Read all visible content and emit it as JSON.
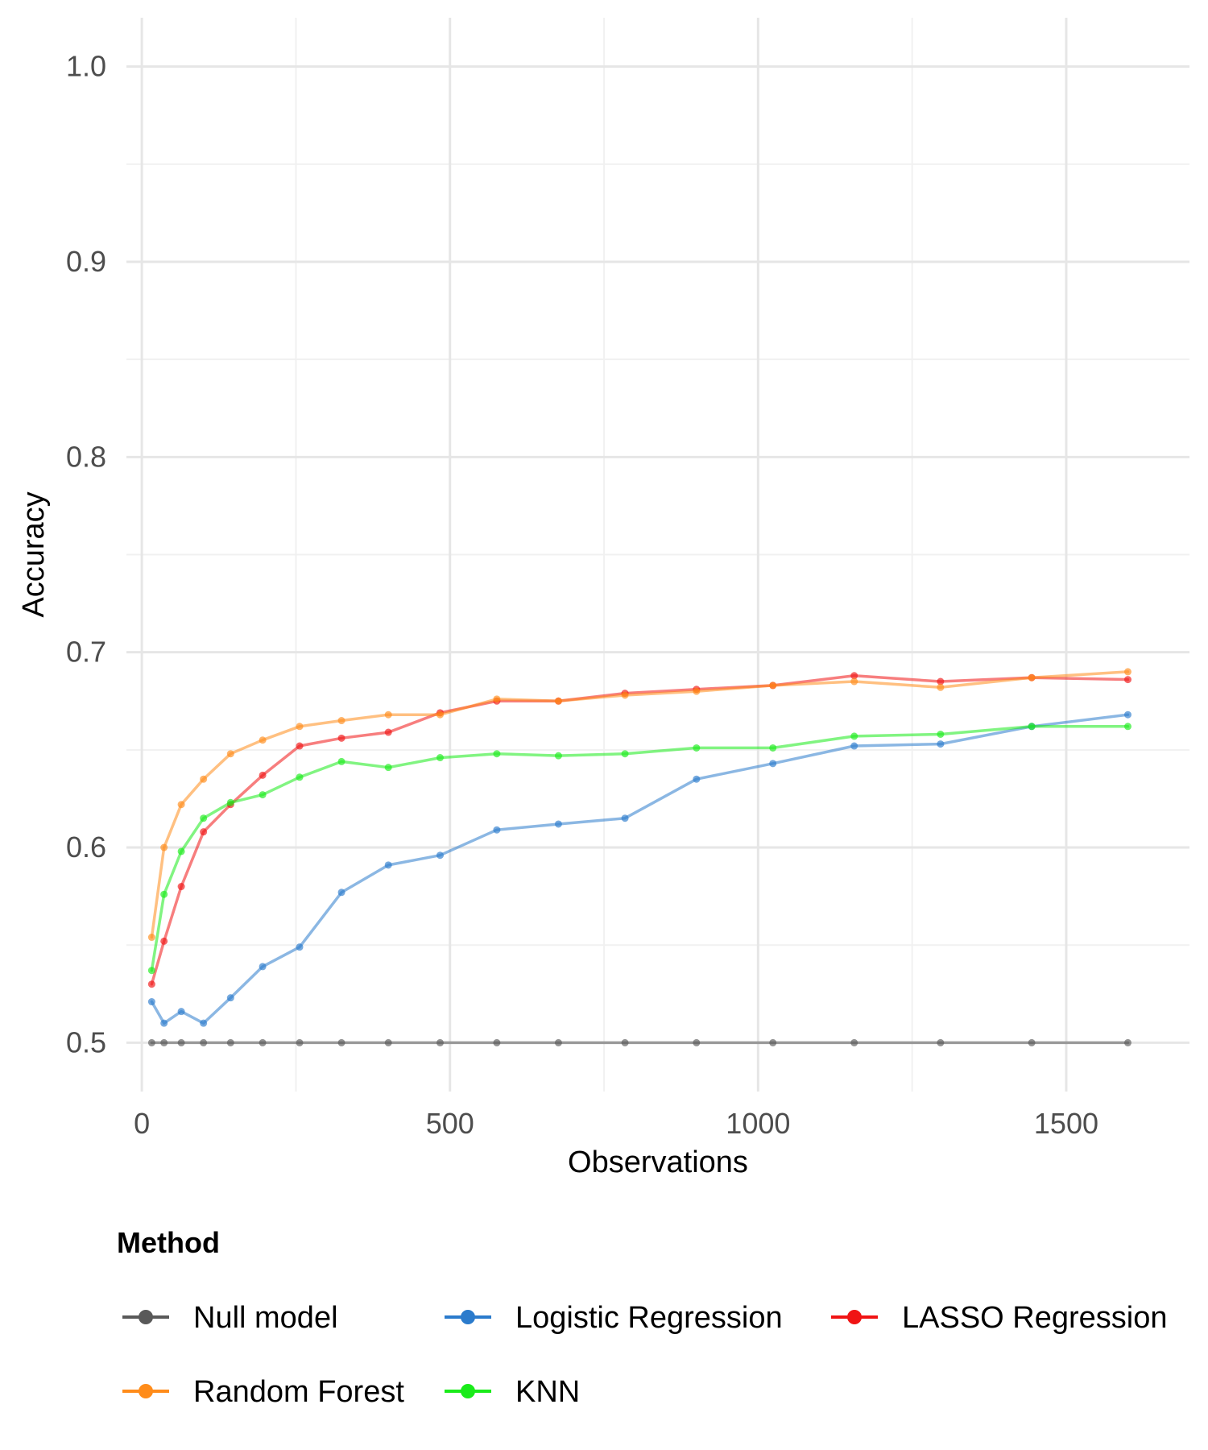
{
  "chart_data": {
    "type": "line",
    "xlabel": "Observations",
    "ylabel": "Accuracy",
    "xlim": [
      -25,
      1700
    ],
    "ylim": [
      0.475,
      1.025
    ],
    "x_ticks": [
      0,
      500,
      1000,
      1500
    ],
    "x_tick_labels": [
      "0",
      "500",
      "1000",
      "1500"
    ],
    "y_ticks": [
      0.5,
      0.6,
      0.7,
      0.8,
      0.9,
      1.0
    ],
    "y_tick_labels": [
      "0.5",
      "0.6",
      "0.7",
      "0.8",
      "0.9",
      "1.0"
    ],
    "grid": true,
    "legend": {
      "title": "Method",
      "position": "bottom"
    },
    "x": [
      16,
      36,
      64,
      100,
      144,
      196,
      256,
      324,
      400,
      484,
      576,
      676,
      784,
      900,
      1024,
      1156,
      1296,
      1444,
      1600
    ],
    "series": [
      {
        "name": "Null model",
        "color": "#595959",
        "values": [
          0.5,
          0.5,
          0.5,
          0.5,
          0.5,
          0.5,
          0.5,
          0.5,
          0.5,
          0.5,
          0.5,
          0.5,
          0.5,
          0.5,
          0.5,
          0.5,
          0.5,
          0.5,
          0.5
        ]
      },
      {
        "name": "Logistic Regression",
        "color": "#2b7bcc",
        "values": [
          0.521,
          0.51,
          0.516,
          0.51,
          0.523,
          0.539,
          0.549,
          0.577,
          0.591,
          0.596,
          0.609,
          0.612,
          0.615,
          0.635,
          0.643,
          0.652,
          0.653,
          0.662,
          0.668
        ]
      },
      {
        "name": "LASSO Regression",
        "color": "#f01414",
        "values": [
          0.53,
          0.552,
          0.58,
          0.608,
          0.622,
          0.637,
          0.652,
          0.656,
          0.659,
          0.669,
          0.675,
          0.675,
          0.679,
          0.681,
          0.683,
          0.688,
          0.685,
          0.687,
          0.686
        ]
      },
      {
        "name": "Random Forest",
        "color": "#ff8c1a",
        "values": [
          0.554,
          0.6,
          0.622,
          0.635,
          0.648,
          0.655,
          0.662,
          0.665,
          0.668,
          0.668,
          0.676,
          0.675,
          0.678,
          0.68,
          0.683,
          0.685,
          0.682,
          0.687,
          0.69
        ]
      },
      {
        "name": "KNN",
        "color": "#1aeb1a",
        "values": [
          0.537,
          0.576,
          0.598,
          0.615,
          0.623,
          0.627,
          0.636,
          0.644,
          0.641,
          0.646,
          0.648,
          0.647,
          0.648,
          0.651,
          0.651,
          0.657,
          0.658,
          0.662,
          0.662
        ]
      }
    ],
    "legend_order": [
      [
        "Null model",
        "Logistic Regression",
        "LASSO Regression"
      ],
      [
        "Random Forest",
        "KNN"
      ]
    ]
  }
}
